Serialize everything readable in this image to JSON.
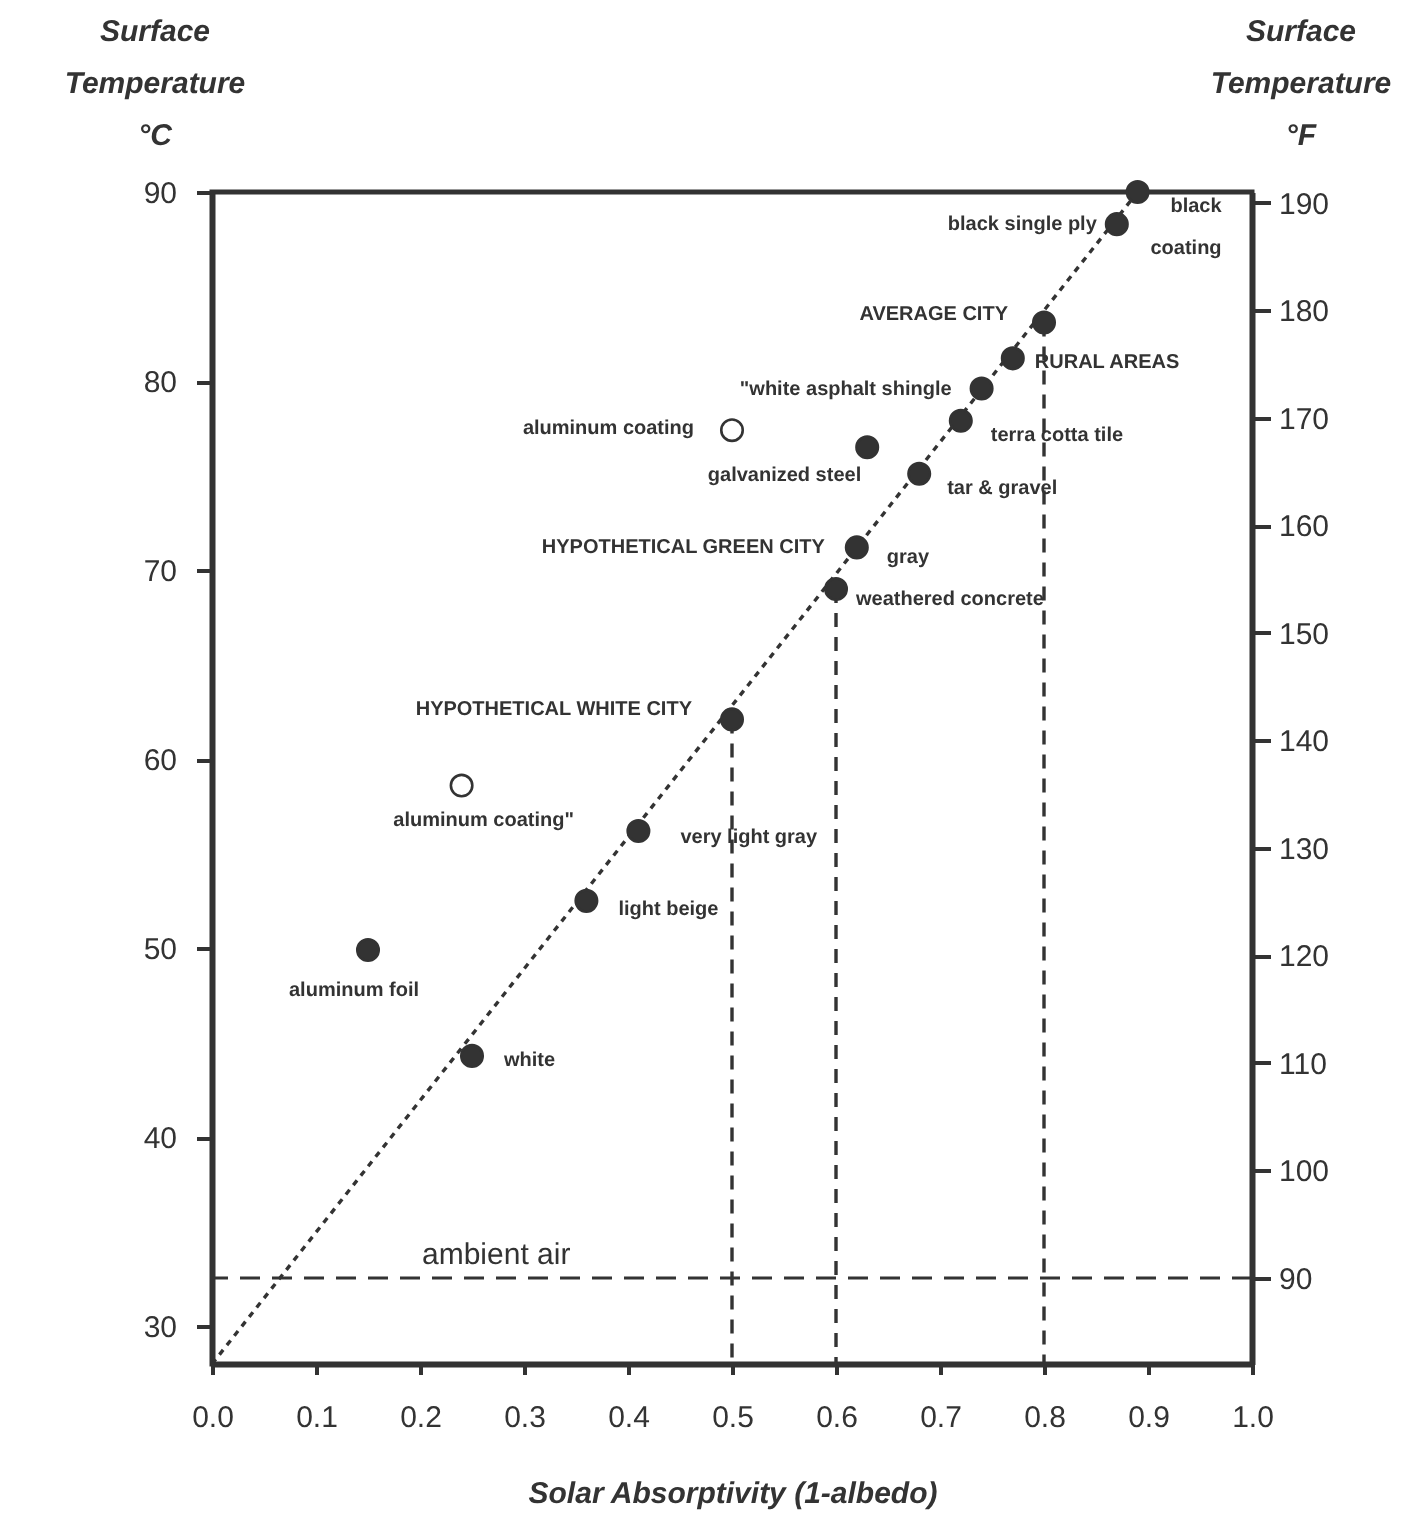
{
  "chart_data": {
    "type": "scatter",
    "xlabel": "Solar Absorptivity (1-albedo)",
    "ylabel": "Surface Temperature °C",
    "y2label": "Surface Temperature °F",
    "xlim": [
      0,
      1
    ],
    "xticks": [
      {
        "value": 0,
        "label": "0.0"
      },
      0.1,
      0.2,
      0.3,
      0.4,
      0.5,
      0.6,
      0.7,
      0.8,
      0.9,
      {
        "value": 1,
        "label": "1.0"
      }
    ],
    "ylim": [
      28,
      90
    ],
    "yticks": [
      30,
      40,
      50,
      60,
      70,
      80,
      90
    ],
    "y2lim": [
      82,
      191
    ],
    "y2ticks": [
      90,
      100,
      110,
      120,
      130,
      140,
      150,
      160,
      170,
      180,
      190
    ],
    "grid": false,
    "series": [
      {
        "type": "line",
        "color": "#333333",
        "line_style": "dotted",
        "marker": "none",
        "x": [
          0,
          0.89
        ],
        "values": [
          28,
          90
        ]
      },
      {
        "type": "line",
        "color": "#333333",
        "line_style": "dashed",
        "marker": "none",
        "x": [
          0.5,
          0.5
        ],
        "values": [
          62.1,
          28
        ]
      },
      {
        "type": "line",
        "color": "#333333",
        "line_style": "dashed",
        "marker": "none",
        "x": [
          0.6,
          0.6
        ],
        "values": [
          69.0,
          28
        ]
      },
      {
        "type": "line",
        "color": "#333333",
        "line_style": "dashed",
        "marker": "none",
        "x": [
          0.8,
          0.8
        ],
        "values": [
          83.1,
          28
        ]
      },
      {
        "color": "#333333",
        "marker": "circle",
        "x": [
          0.89,
          0.87,
          0.8,
          0.77,
          0.74,
          0.72,
          0.63,
          0.68,
          0.62,
          0.6,
          0.5,
          0.41,
          0.36,
          0.15,
          0.25
        ],
        "values": [
          90,
          88.3,
          83.1,
          81.2,
          79.6,
          77.9,
          76.5,
          75.1,
          71.2,
          69.0,
          62.1,
          56.2,
          52.5,
          49.9,
          44.3
        ]
      },
      {
        "color": "#ffffff",
        "marker": "circle",
        "x": [
          0.5,
          0.24
        ],
        "values": [
          77.4,
          58.6
        ]
      }
    ],
    "ref_lines": [
      {
        "axis": "y2",
        "value": 90,
        "label": "ambient air",
        "line_style": "dashed",
        "color": "#333333"
      }
    ],
    "annotations": [
      {
        "text": "black coating",
        "x": 0.89,
        "y": 90
      },
      {
        "text": "black single ply",
        "x": 0.87,
        "y": 88.3
      },
      {
        "text": "AVERAGE CITY",
        "x": 0.8,
        "y": 83.1
      },
      {
        "text": "RURAL AREAS",
        "x": 0.77,
        "y": 81.2
      },
      {
        "text": "\"white asphalt shingle",
        "x": 0.74,
        "y": 79.6
      },
      {
        "text": "terra cotta tile",
        "x": 0.72,
        "y": 77.9
      },
      {
        "text": "aluminum coating",
        "x": 0.5,
        "y": 77.4
      },
      {
        "text": "galvanized steel",
        "x": 0.63,
        "y": 76.5
      },
      {
        "text": "tar & gravel",
        "x": 0.68,
        "y": 75.1
      },
      {
        "text": "HYPOTHETICAL GREEN CITY",
        "x": 0.62,
        "y": 71.2
      },
      {
        "text": "gray",
        "x": 0.62,
        "y": 71.2
      },
      {
        "text": "weathered concrete",
        "x": 0.6,
        "y": 69.0
      },
      {
        "text": "HYPOTHETICAL WHITE CITY",
        "x": 0.5,
        "y": 62.1
      },
      {
        "text": "aluminum coating\"",
        "x": 0.24,
        "y": 58.6
      },
      {
        "text": "very light gray",
        "x": 0.41,
        "y": 56.2
      },
      {
        "text": "light beige",
        "x": 0.36,
        "y": 52.5
      },
      {
        "text": "aluminum foil",
        "x": 0.15,
        "y": 49.9
      },
      {
        "text": "white",
        "x": 0.25,
        "y": 44.3
      }
    ]
  }
}
